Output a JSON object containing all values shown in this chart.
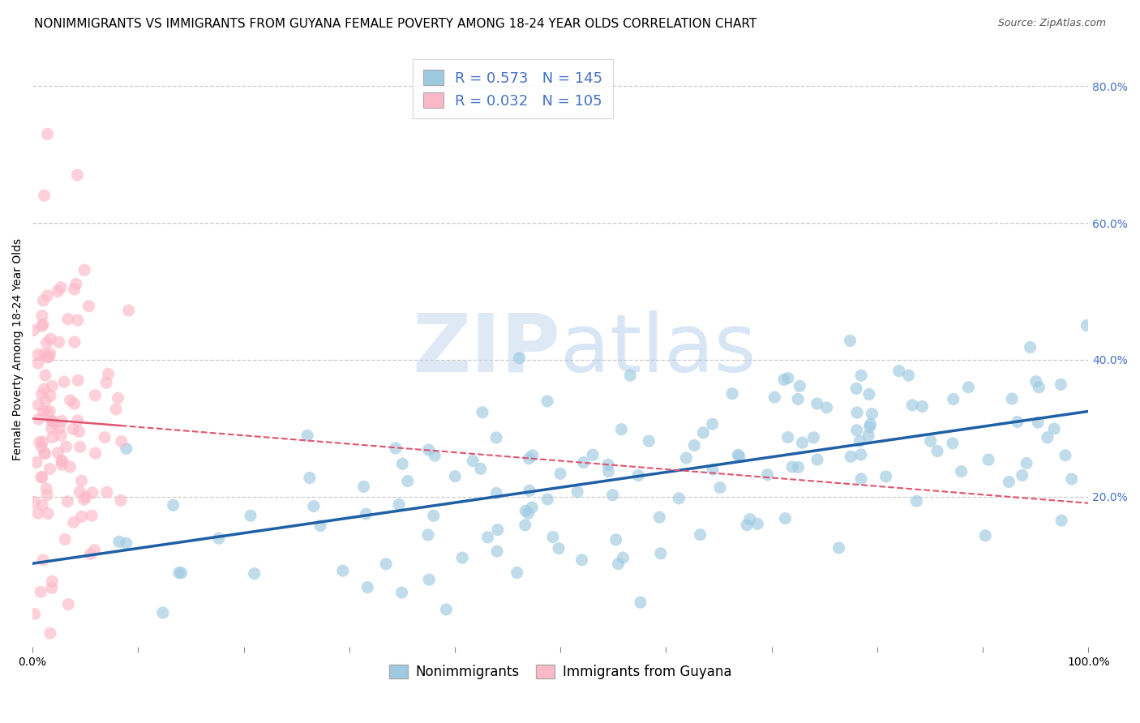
{
  "title": "NONIMMIGRANTS VS IMMIGRANTS FROM GUYANA FEMALE POVERTY AMONG 18-24 YEAR OLDS CORRELATION CHART",
  "source": "Source: ZipAtlas.com",
  "ylabel": "Female Poverty Among 18-24 Year Olds",
  "watermark_zip": "ZIP",
  "watermark_atlas": "atlas",
  "legend_r1": "R = 0.573",
  "legend_n1": "N = 145",
  "legend_r2": "R = 0.032",
  "legend_n2": "N = 105",
  "legend_label1": "Nonimmigrants",
  "legend_label2": "Immigrants from Guyana",
  "nonimm_color": "#9ecae1",
  "nonimm_color_dark": "#1f5fa6",
  "imm_color": "#fcb8c8",
  "imm_color_dark": "#e0536e",
  "background_color": "#ffffff",
  "title_fontsize": 11,
  "scatter_alpha": 0.65,
  "scatter_size": 120,
  "nonimm_R": 0.573,
  "nonimm_N": 145,
  "imm_R": 0.032,
  "imm_N": 105,
  "xlim": [
    0.0,
    1.0
  ],
  "ylim": [
    -0.02,
    0.85
  ],
  "right_ytick_vals": [
    0.0,
    0.2,
    0.4,
    0.6,
    0.8
  ],
  "right_ytick_labels": [
    "",
    "20.0%",
    "40.0%",
    "60.0%",
    "80.0%"
  ],
  "grid_ytick_vals": [
    0.2,
    0.4,
    0.6,
    0.8
  ],
  "xtick_vals": [
    0.0,
    0.1,
    0.2,
    0.3,
    0.4,
    0.5,
    0.6,
    0.7,
    0.8,
    0.9,
    1.0
  ],
  "xtick_labels": [
    "0.0%",
    "",
    "",
    "",
    "",
    "",
    "",
    "",
    "",
    "",
    "100.0%"
  ]
}
